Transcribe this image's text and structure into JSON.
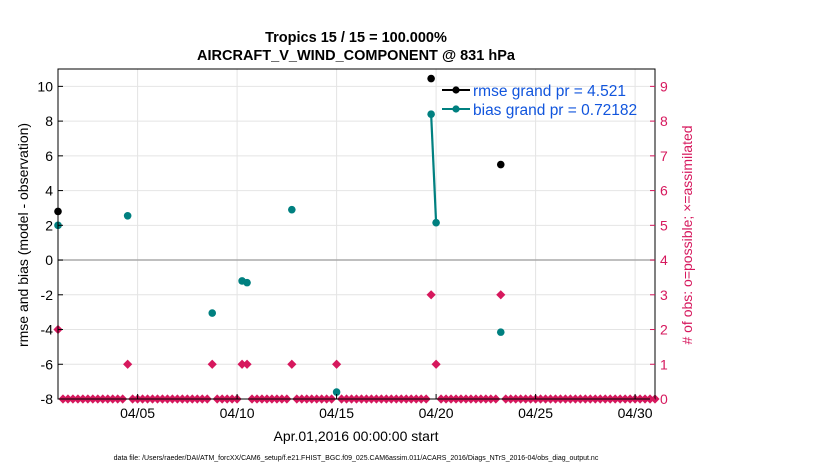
{
  "chart_data": {
    "type": "scatter",
    "title": [
      "Tropics 15 / 15 = 100.000%",
      "AIRCRAFT_V_WIND_COMPONENT @ 831 hPa"
    ],
    "xlabel": "Apr.01,2016 00:00:00 start",
    "ylabel_left": "rmse and bias (model - observation)",
    "ylabel_right": "# of obs: o=possible; ×=assimilated",
    "footnote": "data file: /Users/raeder/DAI/ATM_forcXX/CAM6_setup/f.e21.FHIST_BGC.f09_025.CAM6assim.011/ACARS_2016/Diags_NTrS_2016-04/obs_diag_output.nc",
    "xlim": [
      1.0,
      31.0
    ],
    "ylim_left": [
      -8,
      11
    ],
    "ylim_right": [
      0,
      9.5
    ],
    "x_ticks": [
      {
        "value": 5,
        "label": "04/05"
      },
      {
        "value": 10,
        "label": "04/10"
      },
      {
        "value": 15,
        "label": "04/15"
      },
      {
        "value": 20,
        "label": "04/20"
      },
      {
        "value": 25,
        "label": "04/25"
      },
      {
        "value": 30,
        "label": "04/30"
      }
    ],
    "y_ticks_left": [
      -8,
      -6,
      -4,
      -2,
      0,
      2,
      4,
      6,
      8,
      10
    ],
    "y_ticks_right": [
      0,
      1,
      2,
      3,
      4,
      5,
      6,
      7,
      8,
      9
    ],
    "grid": true,
    "legend_position": "top-right",
    "colors": {
      "rmse": "#000000",
      "bias": "#008080",
      "obs": "#d6185d",
      "legend_text": "#1155dd",
      "zero_line": "#aaaaaa"
    },
    "series": [
      {
        "name": "rmse grand pr = 4.521",
        "key": "rmse",
        "points": [
          [
            1.0,
            2.8
          ],
          [
            19.75,
            10.45
          ],
          [
            23.25,
            5.5
          ]
        ],
        "segments": []
      },
      {
        "name": "bias grand pr = 0.72182",
        "key": "bias",
        "points": [
          [
            1.0,
            2.0
          ],
          [
            4.5,
            2.55
          ],
          [
            8.75,
            -3.05
          ],
          [
            10.25,
            -1.2
          ],
          [
            10.5,
            -1.3
          ],
          [
            12.75,
            2.9
          ],
          [
            15.0,
            -7.6
          ],
          [
            19.75,
            8.4
          ],
          [
            20.0,
            2.15
          ],
          [
            23.25,
            -4.15
          ]
        ],
        "segments": [
          [
            [
              19.75,
              8.4
            ],
            [
              20.0,
              2.15
            ]
          ]
        ]
      }
    ],
    "obs_nonzero": [
      [
        1.0,
        2
      ],
      [
        4.5,
        1
      ],
      [
        8.75,
        1
      ],
      [
        10.25,
        1
      ],
      [
        10.5,
        1
      ],
      [
        12.75,
        1
      ],
      [
        15.0,
        1
      ],
      [
        19.75,
        3
      ],
      [
        20.0,
        1
      ],
      [
        23.25,
        3
      ]
    ],
    "obs_grid": {
      "start": 1.0,
      "end": 31.0,
      "step": 0.25
    }
  }
}
